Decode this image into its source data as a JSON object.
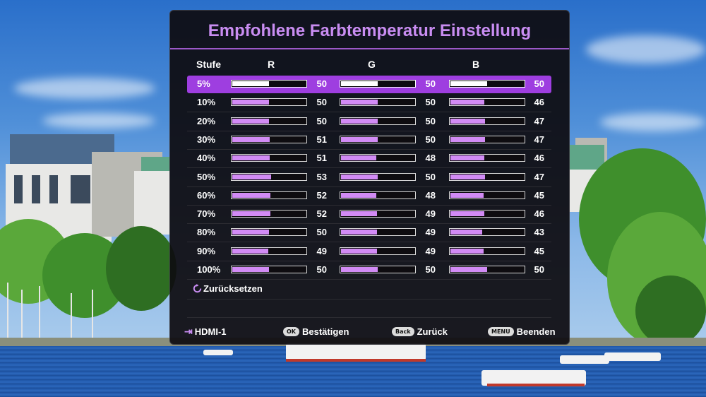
{
  "osd": {
    "title": "Empfohlene Farbtemperatur Einstellung",
    "headers": {
      "level": "Stufe",
      "r": "R",
      "g": "G",
      "b": "B"
    },
    "rows": [
      {
        "level": "5%",
        "r": "50",
        "g": "50",
        "b": "50",
        "selected": true
      },
      {
        "level": "10%",
        "r": "50",
        "g": "50",
        "b": "46"
      },
      {
        "level": "20%",
        "r": "50",
        "g": "50",
        "b": "47"
      },
      {
        "level": "30%",
        "r": "51",
        "g": "50",
        "b": "47"
      },
      {
        "level": "40%",
        "r": "51",
        "g": "48",
        "b": "46"
      },
      {
        "level": "50%",
        "r": "53",
        "g": "50",
        "b": "47"
      },
      {
        "level": "60%",
        "r": "52",
        "g": "48",
        "b": "45"
      },
      {
        "level": "70%",
        "r": "52",
        "g": "49",
        "b": "46"
      },
      {
        "level": "80%",
        "r": "50",
        "g": "49",
        "b": "43"
      },
      {
        "level": "90%",
        "r": "49",
        "g": "49",
        "b": "45"
      },
      {
        "level": "100%",
        "r": "50",
        "g": "50",
        "b": "50"
      }
    ],
    "bar_max": 100,
    "reset_label": "Zurücksetzen",
    "reset_icon": "reset-icon",
    "footer": {
      "source_icon": "input-source-icon",
      "source": "HDMI-1",
      "ok_key": "OK",
      "ok_label": "Bestätigen",
      "back_key": "Back",
      "back_label": "Zurück",
      "menu_key": "MENU",
      "menu_label": "Beenden"
    }
  },
  "colors": {
    "accent": "#c98df2",
    "selection": "#9e3ee0",
    "bar_fill": "#d28bf5",
    "panel": "#0e0c10"
  }
}
